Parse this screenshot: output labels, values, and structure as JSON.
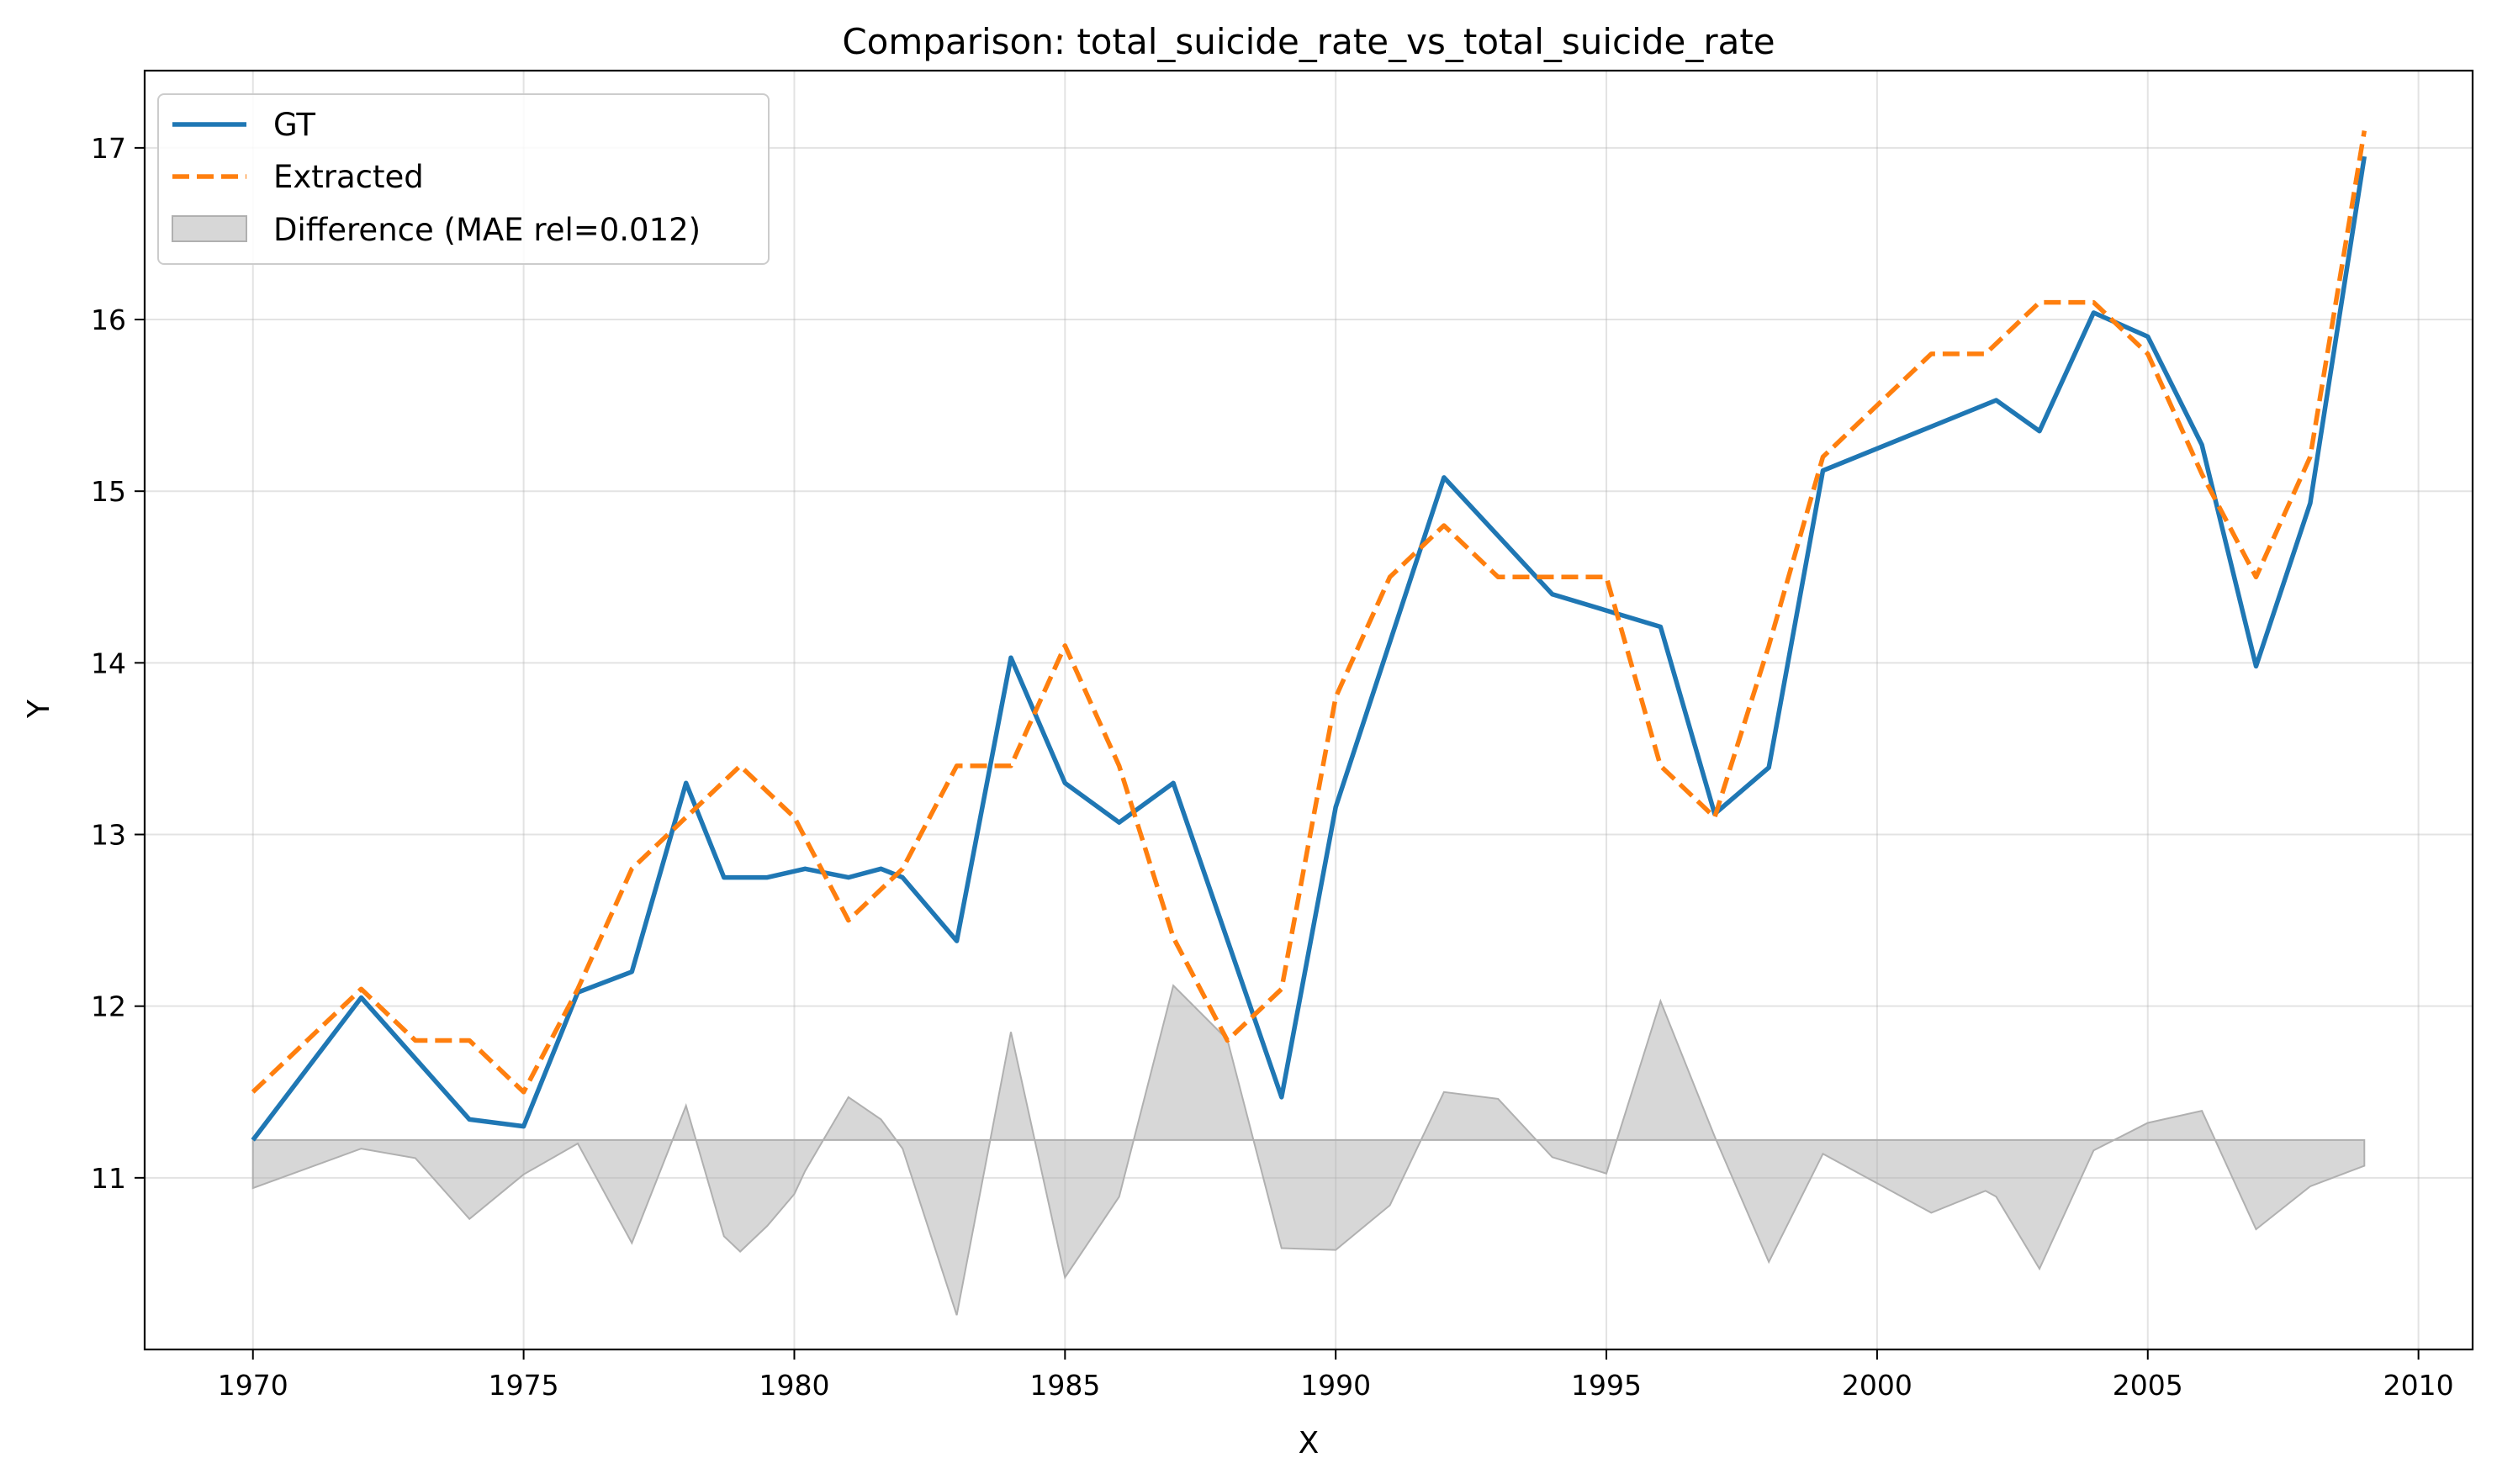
{
  "chart_data": {
    "type": "line",
    "title": "Comparison: total_suicide_rate_vs_total_suicide_rate",
    "xlabel": "X",
    "ylabel": "Y",
    "xlim": [
      1968,
      2011
    ],
    "ylim": [
      10.0,
      17.45
    ],
    "xticks": [
      1970,
      1975,
      1980,
      1985,
      1990,
      1995,
      2000,
      2005,
      2010
    ],
    "yticks": [
      11,
      12,
      13,
      14,
      15,
      16,
      17
    ],
    "grid": true,
    "legend_position": "top-left",
    "series": [
      {
        "name": "GT",
        "color": "#1f77b4",
        "style": "solid",
        "x": [
          1970,
          1972,
          1974,
          1975,
          1976,
          1977,
          1978,
          1978.7,
          1979.5,
          1980.2,
          1981,
          1981.6,
          1982,
          1983,
          1984,
          1985,
          1986,
          1987,
          1989,
          1990,
          1992,
          1994,
          1996,
          1997,
          1998,
          1999,
          2002.2,
          2003,
          2004,
          2005,
          2006,
          2007,
          2008,
          2009
        ],
        "y": [
          11.22,
          12.05,
          11.34,
          11.3,
          12.08,
          12.2,
          13.3,
          12.75,
          12.75,
          12.8,
          12.75,
          12.8,
          12.75,
          12.38,
          14.03,
          13.3,
          13.07,
          13.3,
          11.47,
          13.16,
          15.08,
          14.4,
          14.21,
          13.12,
          13.39,
          15.12,
          15.53,
          15.35,
          16.04,
          15.9,
          15.27,
          13.98,
          14.93,
          16.95
        ]
      },
      {
        "name": "Extracted",
        "color": "#ff7f0e",
        "style": "dashed",
        "x": [
          1970,
          1972,
          1973,
          1974,
          1975,
          1976,
          1977,
          1978,
          1979,
          1980,
          1981,
          1982,
          1983,
          1984,
          1985,
          1986,
          1987,
          1988,
          1989,
          1990,
          1991,
          1992,
          1993,
          1994,
          1995,
          1996,
          1997,
          1998,
          1999,
          2000,
          2001,
          2002,
          2003,
          2004,
          2005,
          2006,
          2007,
          2008,
          2009
        ],
        "y": [
          11.5,
          12.1,
          11.8,
          11.8,
          11.5,
          12.1,
          12.8,
          13.1,
          13.4,
          13.1,
          12.5,
          12.8,
          13.4,
          13.4,
          14.1,
          13.4,
          12.4,
          11.8,
          12.1,
          13.8,
          14.5,
          14.8,
          14.5,
          14.5,
          14.5,
          13.4,
          13.1,
          14.1,
          15.2,
          15.5,
          15.8,
          15.8,
          16.1,
          16.1,
          15.8,
          15.1,
          14.5,
          15.2,
          17.1
        ]
      }
    ],
    "difference": {
      "name": "Difference (MAE rel=0.012)",
      "color": "#b0b0b0",
      "baseline": 11.22
    }
  }
}
